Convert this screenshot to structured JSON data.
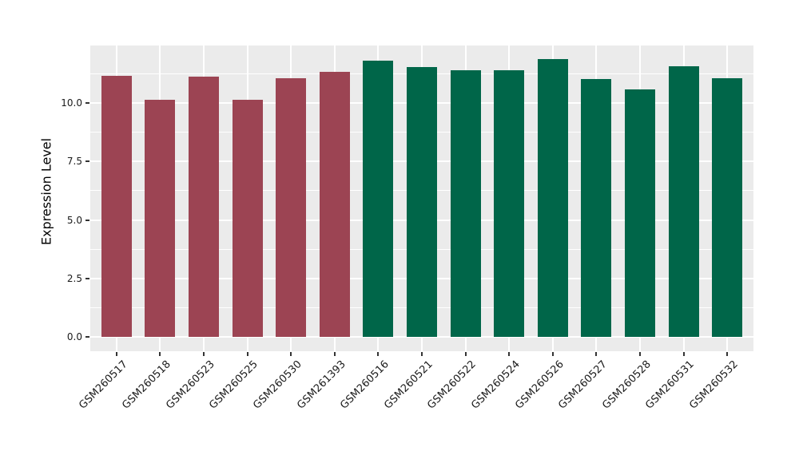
{
  "chart_data": {
    "type": "bar",
    "title": "",
    "xlabel": "",
    "ylabel": "Expression Level",
    "categories": [
      "GSM260517",
      "GSM260518",
      "GSM260523",
      "GSM260525",
      "GSM260530",
      "GSM261393",
      "GSM260516",
      "GSM260521",
      "GSM260522",
      "GSM260524",
      "GSM260526",
      "GSM260527",
      "GSM260528",
      "GSM260531",
      "GSM260532"
    ],
    "values": [
      11.15,
      10.12,
      11.12,
      10.13,
      11.07,
      11.31,
      11.81,
      11.54,
      11.4,
      11.4,
      11.87,
      11.03,
      10.57,
      11.56,
      11.06
    ],
    "bar_groups": [
      "group1",
      "group1",
      "group1",
      "group1",
      "group1",
      "group1",
      "group2",
      "group2",
      "group2",
      "group2",
      "group2",
      "group2",
      "group2",
      "group2",
      "group2"
    ],
    "group_colors": {
      "group1": "#9c4453",
      "group2": "#006649"
    },
    "ytick_labels": [
      "0.0",
      "2.5",
      "5.0",
      "7.5",
      "10.0"
    ],
    "ytick_values": [
      0,
      2.5,
      5,
      7.5,
      10
    ],
    "minor_ytick_values": [
      1.25,
      3.75,
      6.25,
      8.75,
      11.25
    ],
    "ylim": [
      -0.6,
      12.45
    ],
    "grid": "on",
    "legend": "none",
    "panel_background": "#ebebeb",
    "gridline_color": "#ffffff",
    "tick_color": "#333333",
    "bar_width_fraction": 0.7,
    "category_edge_padding": 0.6
  }
}
